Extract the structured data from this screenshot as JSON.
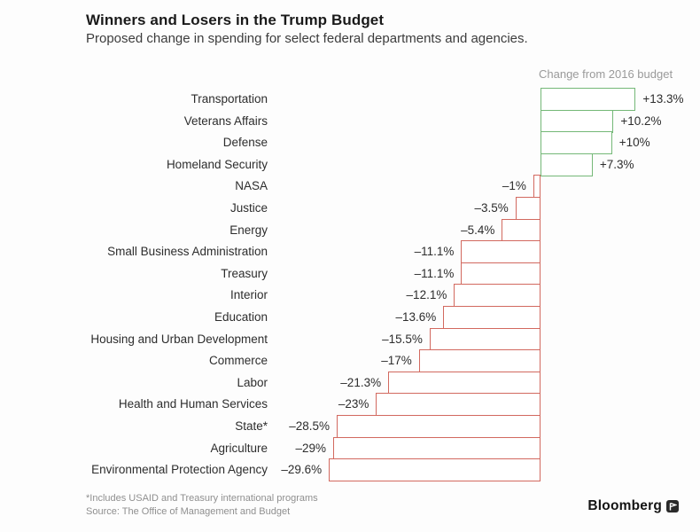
{
  "header": {
    "title": "Winners and Losers in the Trump Budget",
    "subtitle": "Proposed change in spending for select federal departments and agencies."
  },
  "chart_data": {
    "type": "bar",
    "orientation": "horizontal",
    "annotation": "Change from 2016 budget",
    "title": "Winners and Losers in the Trump Budget",
    "subtitle": "Proposed change in spending for select federal departments and agencies.",
    "xlabel": "Change from 2016 budget (%)",
    "ylabel": "",
    "xlim": [
      -32,
      15
    ],
    "grid": false,
    "legend": "none",
    "baseline": 0,
    "positive_color": "#74b877",
    "negative_color": "#d2695f",
    "bar_fill": "#ffffff",
    "categories": [
      "Transportation",
      "Veterans Affairs",
      "Defense",
      "Homeland Security",
      "NASA",
      "Justice",
      "Energy",
      "Small Business Administration",
      "Treasury",
      "Interior",
      "Education",
      "Housing and Urban Development",
      "Commerce",
      "Labor",
      "Health and Human Services",
      "State*",
      "Agriculture",
      "Environmental Protection Agency"
    ],
    "values": [
      13.3,
      10.2,
      10,
      7.3,
      -1,
      -3.5,
      -5.4,
      -11.1,
      -11.1,
      -12.1,
      -13.6,
      -15.5,
      -17,
      -21.3,
      -23,
      -28.5,
      -29,
      -29.6
    ],
    "value_labels": [
      "+13.3%",
      "+10.2%",
      "+10%",
      "+7.3%",
      "–1%",
      "–3.5%",
      "–5.4%",
      "–11.1%",
      "–11.1%",
      "–12.1%",
      "–13.6%",
      "–15.5%",
      "–17%",
      "–21.3%",
      "–23%",
      "–28.5%",
      "–29%",
      "–29.6%"
    ]
  },
  "footer": {
    "footnote": "*Includes USAID and Treasury international programs",
    "source": "Source: The Office of Management and Budget",
    "brand": "Bloomberg",
    "brand_mark": "bloomberg-pennant-icon"
  }
}
